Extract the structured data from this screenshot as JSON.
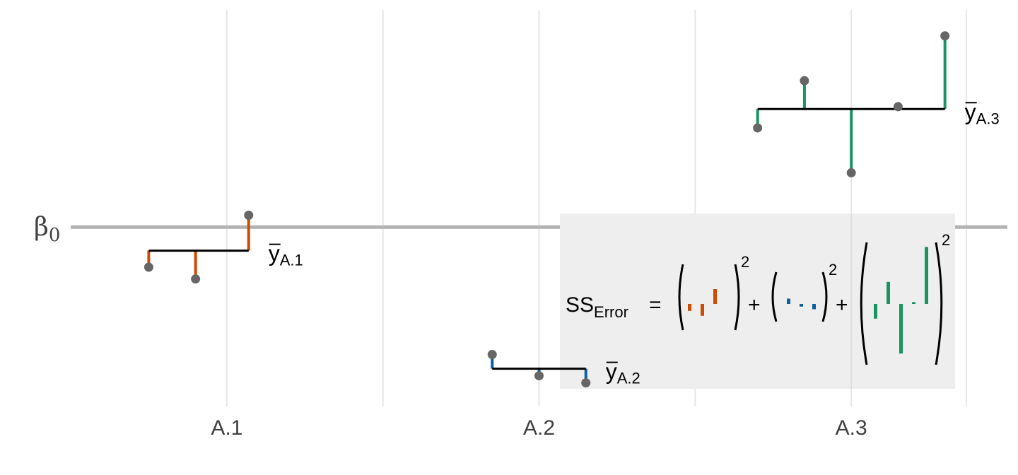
{
  "chart_data": {
    "type": "scatter",
    "categories": [
      "A.1",
      "A.2",
      "A.3"
    ],
    "y_axis_label": "β0",
    "baseline_subscript": "0",
    "baseline_symbol": "β",
    "colors": {
      "A.1": "#cc4c02",
      "A.2": "#0b5fa5",
      "A.3": "#1b9462",
      "points": "#666666",
      "baseline": "#b3b3b3",
      "panel": "#eeeeee"
    },
    "baseline_value": 0,
    "grid": true,
    "groups": [
      {
        "category": "A.1",
        "mean": -0.5,
        "points": [
          {
            "x": 0.75,
            "y": -0.85
          },
          {
            "x": 0.9,
            "y": -1.1
          },
          {
            "x": 1.07,
            "y": 0.25
          }
        ],
        "mean_label": {
          "symbol": "y",
          "subscript": "A.1"
        }
      },
      {
        "category": "A.2",
        "mean": -3.0,
        "points": [
          {
            "x": 1.85,
            "y": -2.7
          },
          {
            "x": 2.0,
            "y": -3.15
          },
          {
            "x": 2.15,
            "y": -3.3
          }
        ],
        "mean_label": {
          "symbol": "y",
          "subscript": "A.2"
        }
      },
      {
        "category": "A.3",
        "mean": 2.5,
        "points": [
          {
            "x": 2.7,
            "y": 2.1
          },
          {
            "x": 2.85,
            "y": 3.1
          },
          {
            "x": 3.0,
            "y": 1.15
          },
          {
            "x": 3.15,
            "y": 2.55
          },
          {
            "x": 3.3,
            "y": 4.05
          }
        ],
        "mean_label": {
          "symbol": "y",
          "subscript": "A.3"
        }
      }
    ],
    "xlim": [
      0.5,
      3.5
    ],
    "ylim": [
      -3.8,
      4.6
    ],
    "equation": {
      "lhs": "SS",
      "lhs_subscript": "Error",
      "equals": "=",
      "plus": "+",
      "exponent": "2"
    }
  }
}
